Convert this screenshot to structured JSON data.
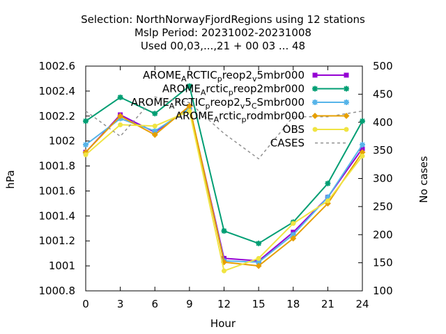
{
  "chart_data": {
    "type": "line",
    "title_lines": [
      "Selection: NorthNorwayFjordRegions using    12 stations",
      "Mslp   Period: 20231002-20231008",
      "Used  00,03,...,21  + 00 03 ... 48"
    ],
    "xlabel": "Hour",
    "ylabel": "hPa",
    "y2label": "No cases",
    "x": [
      0,
      3,
      6,
      9,
      12,
      15,
      18,
      21,
      24
    ],
    "x_ticks": [
      "0",
      "3",
      "6",
      "9",
      "12",
      "15",
      "18",
      "21",
      "24"
    ],
    "xlim": [
      0,
      24
    ],
    "ylim": [
      1000.8,
      1002.6
    ],
    "y_ticks": [
      "1000.8",
      "1001",
      "1001.2",
      "1001.4",
      "1001.6",
      "1001.8",
      "1002",
      "1002.2",
      "1002.4",
      "1002.6"
    ],
    "y_tick_values": [
      1000.8,
      1001.0,
      1001.2,
      1001.4,
      1001.6,
      1001.8,
      1002.0,
      1002.2,
      1002.4,
      1002.6
    ],
    "y2lim": [
      100,
      500
    ],
    "y2_ticks": [
      "100",
      "150",
      "200",
      "250",
      "300",
      "350",
      "400",
      "450",
      "500"
    ],
    "y2_tick_values": [
      100,
      150,
      200,
      250,
      300,
      350,
      400,
      450,
      500
    ],
    "grid": false,
    "legend_position": "top-right",
    "series": [
      {
        "legend": [
          [
            "AROME",
            false
          ],
          [
            "A",
            true
          ],
          [
            "RCTIC",
            false
          ],
          [
            "p",
            true
          ],
          [
            "reop2",
            false
          ],
          [
            "v",
            true
          ],
          [
            "5mbr000",
            false
          ]
        ],
        "color": "#9400d3",
        "marker": "square",
        "axis": "y",
        "values": [
          1001.91,
          1002.21,
          1002.07,
          1002.27,
          1001.06,
          1001.04,
          1001.27,
          1001.55,
          1001.94
        ]
      },
      {
        "legend": [
          [
            "AROME",
            false
          ],
          [
            "A",
            true
          ],
          [
            "rctic",
            false
          ],
          [
            "p",
            true
          ],
          [
            "reop2mbr000",
            false
          ]
        ],
        "color": "#009e73",
        "marker": "star",
        "axis": "y",
        "values": [
          1002.16,
          1002.35,
          1002.22,
          1002.44,
          1001.28,
          1001.18,
          1001.35,
          1001.66,
          1002.16
        ]
      },
      {
        "legend": [
          [
            "AROME",
            false
          ],
          [
            "A",
            true
          ],
          [
            "RCTIC",
            false
          ],
          [
            "p",
            true
          ],
          [
            "reop2",
            false
          ],
          [
            "v",
            true
          ],
          [
            "5",
            false
          ],
          [
            "C",
            true
          ],
          [
            "Smbr000",
            false
          ]
        ],
        "color": "#56b4e9",
        "marker": "star",
        "axis": "y",
        "values": [
          1001.97,
          1002.18,
          1002.08,
          1002.26,
          1001.04,
          1001.03,
          1001.25,
          1001.55,
          1001.97
        ]
      },
      {
        "legend": [
          [
            "AROME",
            false
          ],
          [
            "A",
            true
          ],
          [
            "rctic",
            false
          ],
          [
            "p",
            true
          ],
          [
            "rodmbr000",
            false
          ]
        ],
        "color": "#e69f00",
        "marker": "diamond",
        "axis": "y",
        "values": [
          1001.91,
          1002.2,
          1002.05,
          1002.28,
          1001.03,
          1001.0,
          1001.22,
          1001.5,
          1001.91
        ]
      },
      {
        "legend": [
          [
            "OBS",
            false
          ]
        ],
        "color": "#f0e442",
        "marker": "circle",
        "axis": "y",
        "values": [
          1001.89,
          1002.13,
          1002.12,
          1002.24,
          1000.96,
          1001.06,
          1001.34,
          1001.52,
          1001.88
        ]
      },
      {
        "legend": [
          [
            "CASES",
            false
          ]
        ],
        "color": "#909090",
        "marker": "none",
        "dashed": true,
        "axis": "y2",
        "values": [
          420,
          375,
          445,
          435,
          380,
          335,
          410,
          410,
          420
        ]
      }
    ]
  }
}
